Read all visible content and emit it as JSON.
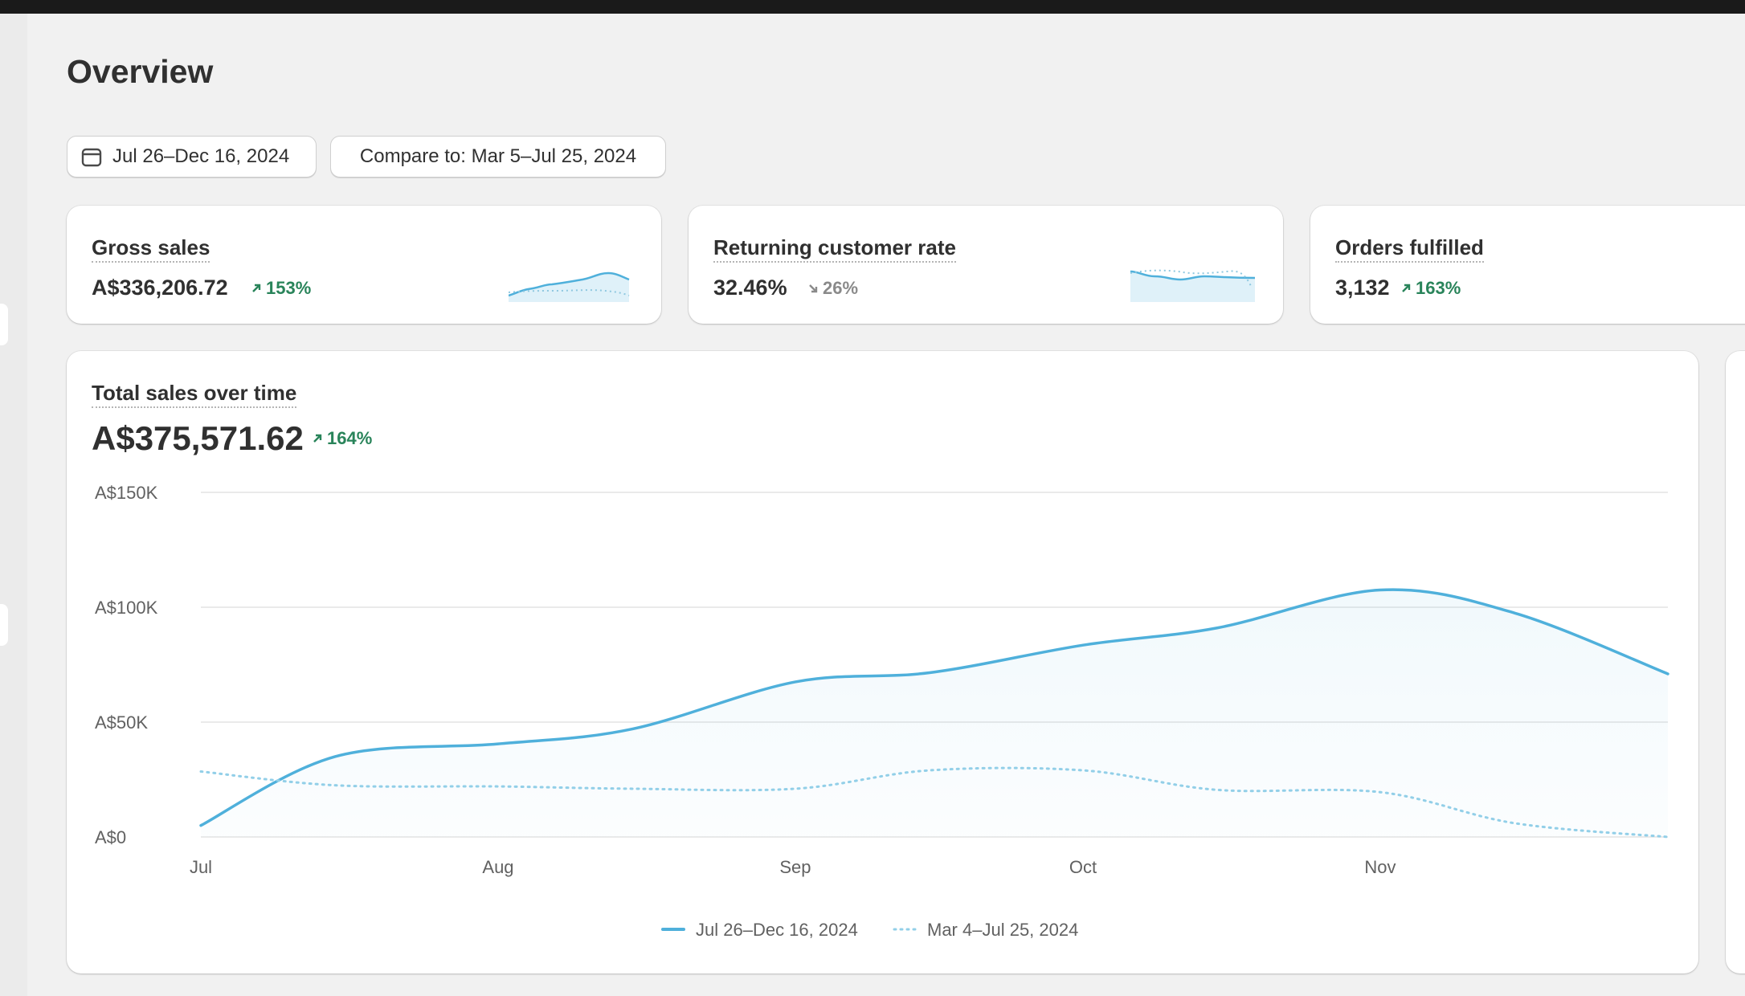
{
  "page": {
    "title": "Overview"
  },
  "filters": {
    "date_range": "Jul 26–Dec 16, 2024",
    "compare": "Compare to: Mar 5–Jul 25, 2024",
    "date_icon": "calendar-icon"
  },
  "metrics": [
    {
      "label": "Gross sales",
      "value": "A$336,206.72",
      "change": "153%",
      "direction": "up"
    },
    {
      "label": "Returning customer rate",
      "value": "32.46%",
      "change": "26%",
      "direction": "down"
    },
    {
      "label": "Orders fulfilled",
      "value": "3,132",
      "change": "163%",
      "direction": "up"
    }
  ],
  "colors": {
    "accent": "#4fb0db",
    "positive": "#29845a",
    "neutral": "#8a8a8a",
    "comparison": "#92cfe8"
  },
  "chart": {
    "title": "Total sales over time",
    "total": "A$375,571.62",
    "change": "164%"
  },
  "chart_data": {
    "type": "line",
    "x_type": "date",
    "x": [
      "2024-07-01",
      "2024-07-15",
      "2024-08-01",
      "2024-08-15",
      "2024-09-01",
      "2024-09-15",
      "2024-10-01",
      "2024-10-15",
      "2024-11-01",
      "2024-11-15",
      "2024-12-01"
    ],
    "series": [
      {
        "name": "Jul 26–Dec 16, 2024",
        "style": "solid-area",
        "values": [
          5000,
          35000,
          40500,
          47000,
          67500,
          71500,
          83500,
          91000,
          107500,
          97500,
          71000
        ]
      },
      {
        "name": "Mar 4–Jul 25, 2024",
        "style": "dotted",
        "values": [
          28500,
          22500,
          22000,
          21000,
          21000,
          29000,
          29000,
          20500,
          19500,
          6000,
          0
        ]
      }
    ],
    "x_tick_labels": [
      "Jul",
      "Aug",
      "Sep",
      "Oct",
      "Nov"
    ],
    "y_ticks": [
      0,
      50000,
      100000,
      150000
    ],
    "y_tick_labels": [
      "A$0",
      "A$50K",
      "A$100K",
      "A$150K"
    ],
    "ylim": [
      0,
      150000
    ],
    "grid": true,
    "legend_position": "bottom-center"
  }
}
